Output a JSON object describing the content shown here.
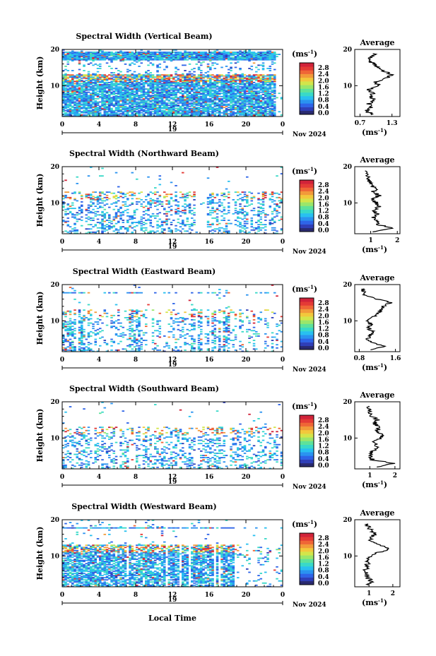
{
  "colorbar": {
    "unit": "(ms",
    "unit_sup": "-1",
    "ticks": [
      "2.8",
      "2.4",
      "2.0",
      "1.6",
      "1.2",
      "0.8",
      "0.4",
      "0.0"
    ],
    "colors": [
      "#2a2a70",
      "#2f3fb8",
      "#2e64e8",
      "#2a93f0",
      "#28c0f0",
      "#39d9c8",
      "#5ee29a",
      "#9be66a",
      "#d3e54a",
      "#f2c83c",
      "#f29a3a",
      "#ef6636",
      "#e43b36",
      "#d1233a"
    ]
  },
  "x_ticks": [
    "0",
    "4",
    "8",
    "12",
    "16",
    "20",
    "0"
  ],
  "day_label": "19",
  "date_label": "Nov 2024",
  "y_label": "Height (km)",
  "y_ticks": [
    "20",
    "10"
  ],
  "avg_title": "Average",
  "avg_unit": "(ms",
  "avg_unit_sup": "-1",
  "x_axis_title": "Local Time",
  "chart_data": [
    {
      "type": "heatmap",
      "title": "Spectral Width (Vertical Beam)",
      "xlabel": "",
      "ylabel": "Height (km)",
      "xlim": [
        0,
        24
      ],
      "ylim": [
        1.5,
        20
      ],
      "clim": [
        0,
        3.0
      ],
      "profile": {
        "type": "line",
        "title": "Average",
        "xlabel": "(ms-1)",
        "xticks": [
          "0.7",
          "1.3"
        ],
        "xlim": [
          0.6,
          1.45
        ],
        "height": [
          2,
          3,
          4,
          5,
          6,
          7,
          8,
          9,
          10,
          11,
          12,
          13,
          14,
          15,
          16,
          17,
          18,
          19
        ],
        "width": [
          0.95,
          0.82,
          0.92,
          0.85,
          0.98,
          0.9,
          0.95,
          0.85,
          1.05,
          1.0,
          1.2,
          1.3,
          1.15,
          1.05,
          0.95,
          0.85,
          0.9,
          1.0
        ]
      }
    },
    {
      "type": "heatmap",
      "title": "Spectral Width (Northward Beam)",
      "xlabel": "",
      "ylabel": "Height (km)",
      "xlim": [
        0,
        24
      ],
      "ylim": [
        1.5,
        20
      ],
      "clim": [
        0,
        3.0
      ],
      "profile": {
        "type": "line",
        "title": "Average",
        "xlabel": "(ms-1)",
        "xticks": [
          "1",
          "2"
        ],
        "xlim": [
          0.4,
          2.1
        ],
        "height": [
          2,
          3,
          4,
          5,
          6,
          7,
          8,
          9,
          10,
          11,
          12,
          13,
          14,
          15,
          16,
          17,
          18,
          19
        ],
        "width": [
          1.0,
          1.9,
          1.3,
          1.2,
          1.1,
          1.25,
          1.15,
          1.3,
          1.2,
          1.05,
          1.3,
          1.1,
          1.2,
          1.0,
          0.95,
          0.9,
          0.85,
          0.8
        ]
      }
    },
    {
      "type": "heatmap",
      "title": "Spectral Width (Eastward Beam)",
      "xlabel": "",
      "ylabel": "Height (km)",
      "xlim": [
        0,
        24
      ],
      "ylim": [
        1.5,
        20
      ],
      "clim": [
        0,
        3.0
      ],
      "profile": {
        "type": "line",
        "title": "Average",
        "xlabel": "(ms-1)",
        "xticks": [
          "0.8",
          "1.6"
        ],
        "xlim": [
          0.7,
          1.7
        ],
        "height": [
          2,
          3,
          4,
          5,
          6,
          7,
          8,
          9,
          10,
          11,
          12,
          13,
          14,
          15,
          16,
          17,
          18,
          19
        ],
        "width": [
          1.0,
          1.35,
          1.1,
          1.0,
          1.05,
          1.1,
          1.0,
          1.05,
          1.0,
          1.1,
          1.2,
          1.3,
          1.35,
          1.5,
          1.2,
          0.95,
          0.9,
          0.85
        ]
      }
    },
    {
      "type": "heatmap",
      "title": "Spectral Width (Southward Beam)",
      "xlabel": "",
      "ylabel": "Height (km)",
      "xlim": [
        0,
        24
      ],
      "ylim": [
        1.5,
        20
      ],
      "clim": [
        0,
        3.0
      ],
      "profile": {
        "type": "line",
        "title": "Average",
        "xlabel": "(ms-1)",
        "xticks": [
          "1",
          "2"
        ],
        "xlim": [
          0.4,
          2.2
        ],
        "height": [
          2,
          3,
          4,
          5,
          6,
          7,
          8,
          9,
          10,
          11,
          12,
          13,
          14,
          15,
          16,
          17,
          18,
          19
        ],
        "width": [
          1.2,
          2.0,
          1.1,
          1.0,
          1.1,
          1.2,
          1.3,
          1.2,
          1.4,
          1.5,
          1.3,
          1.35,
          1.2,
          1.3,
          1.1,
          1.0,
          0.95,
          0.9
        ]
      }
    },
    {
      "type": "heatmap",
      "title": "Spectral Width (Westward Beam)",
      "xlabel": "Local Time",
      "ylabel": "Height (km)",
      "xlim": [
        0,
        24
      ],
      "ylim": [
        1.5,
        20
      ],
      "clim": [
        0,
        3.0
      ],
      "profile": {
        "type": "line",
        "title": "Average",
        "xlabel": "(ms-1)",
        "xticks": [
          "1",
          "2"
        ],
        "xlim": [
          0.4,
          2.3
        ],
        "height": [
          2,
          3,
          4,
          5,
          6,
          7,
          8,
          9,
          10,
          11,
          12,
          13,
          14,
          15,
          16,
          17,
          18,
          19
        ],
        "width": [
          0.9,
          1.1,
          0.95,
          0.9,
          0.85,
          0.9,
          0.95,
          1.0,
          1.05,
          1.4,
          1.9,
          1.4,
          1.1,
          1.0,
          1.3,
          1.1,
          1.0,
          0.9
        ]
      }
    }
  ]
}
